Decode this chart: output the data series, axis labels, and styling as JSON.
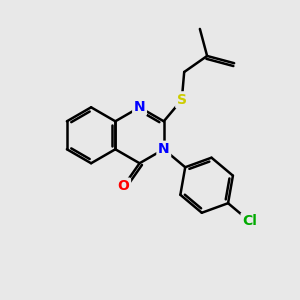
{
  "background_color": "#e8e8e8",
  "bond_color": "#000000",
  "bond_width": 1.8,
  "atom_colors": {
    "N": "#0000ff",
    "O": "#ff0000",
    "S": "#cccc00",
    "Cl": "#00aa00",
    "C": "#000000"
  },
  "figsize": [
    3.0,
    3.0
  ],
  "dpi": 100,
  "bl": 0.95
}
